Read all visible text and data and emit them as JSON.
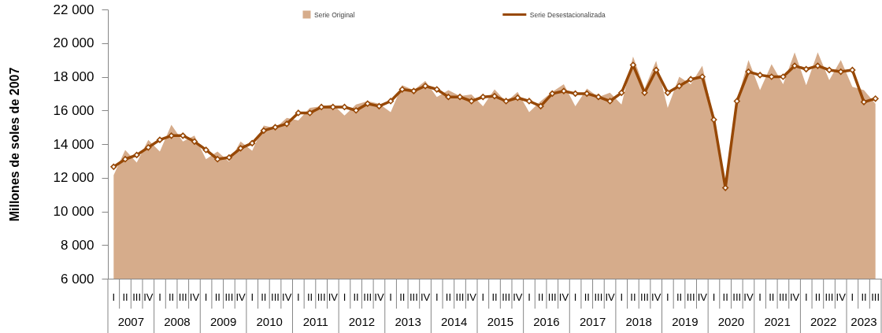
{
  "chart_data": {
    "type": "area",
    "ylabel": "Millones de soles de 2007",
    "categories": [
      "I",
      "II",
      "III",
      "IV",
      "I",
      "II",
      "III",
      "IV",
      "I",
      "II",
      "III",
      "IV",
      "I",
      "II",
      "III",
      "IV",
      "I",
      "II",
      "III",
      "IV",
      "I",
      "II",
      "III",
      "IV",
      "I",
      "II",
      "III",
      "IV",
      "I",
      "II",
      "III",
      "IV",
      "I",
      "II",
      "III",
      "IV",
      "I",
      "II",
      "III",
      "IV",
      "I",
      "II",
      "III",
      "IV",
      "I",
      "II",
      "III",
      "IV",
      "I",
      "II",
      "III",
      "IV",
      "I",
      "II",
      "III",
      "IV",
      "I",
      "II",
      "III",
      "IV",
      "I",
      "II",
      "III",
      "IV",
      "I",
      "II",
      "III"
    ],
    "annotations": [
      "2007",
      "2008",
      "2009",
      "2010",
      "2011",
      "2012",
      "2013",
      "2014",
      "2015",
      "2016",
      "2017",
      "2018",
      "2019",
      "2020",
      "2021",
      "2022",
      "2023"
    ],
    "series": [
      {
        "name": "Serie Original",
        "color": "#d6ac8b",
        "values": [
          12150,
          13650,
          12900,
          14250,
          13550,
          15150,
          14150,
          14500,
          13100,
          13550,
          12950,
          14150,
          13600,
          15100,
          14950,
          15550,
          15400,
          16150,
          16250,
          16350,
          15700,
          16350,
          16550,
          16400,
          15900,
          17500,
          17200,
          17750,
          16800,
          17200,
          16850,
          16950,
          16250,
          17250,
          16500,
          17100,
          15900,
          16550,
          17100,
          17550,
          16250,
          17300,
          16800,
          17050,
          16350,
          19200,
          17300,
          18950,
          16150,
          18000,
          17550,
          18650,
          15450,
          11650,
          16550,
          19000,
          17200,
          18750,
          17550,
          19450,
          17500,
          19450,
          17800,
          19000,
          17400,
          17200,
          16400
        ]
      },
      {
        "name": "Serie Desestacionalizada",
        "type": "line",
        "color": "#974806",
        "marker": "diamond",
        "line_style": "solid",
        "values": [
          12650,
          13100,
          13350,
          13800,
          14250,
          14500,
          14500,
          14150,
          13650,
          13100,
          13200,
          13750,
          14050,
          14800,
          15000,
          15200,
          15850,
          15850,
          16200,
          16200,
          16200,
          16000,
          16400,
          16250,
          16550,
          17250,
          17150,
          17450,
          17250,
          16800,
          16800,
          16550,
          16800,
          16850,
          16550,
          16750,
          16550,
          16250,
          17000,
          17150,
          17000,
          17000,
          16800,
          16550,
          17050,
          18700,
          17050,
          18400,
          17050,
          17450,
          17850,
          18000,
          15450,
          11400,
          16550,
          18300,
          18100,
          18000,
          18000,
          18650,
          18450,
          18650,
          18400,
          18300,
          18400,
          16500,
          16700
        ]
      }
    ],
    "ylim": [
      6000,
      22000
    ],
    "yticks": [
      {
        "value": 6000,
        "label": "6 000"
      },
      {
        "value": 8000,
        "label": "8 000"
      },
      {
        "value": 10000,
        "label": "10 000"
      },
      {
        "value": 12000,
        "label": "12 000"
      },
      {
        "value": 14000,
        "label": "14 000"
      },
      {
        "value": 16000,
        "label": "16 000"
      },
      {
        "value": 18000,
        "label": "18 000"
      },
      {
        "value": 20000,
        "label": "20 000"
      },
      {
        "value": 22000,
        "label": "22 000"
      }
    ],
    "grid": false,
    "legend": "top"
  }
}
